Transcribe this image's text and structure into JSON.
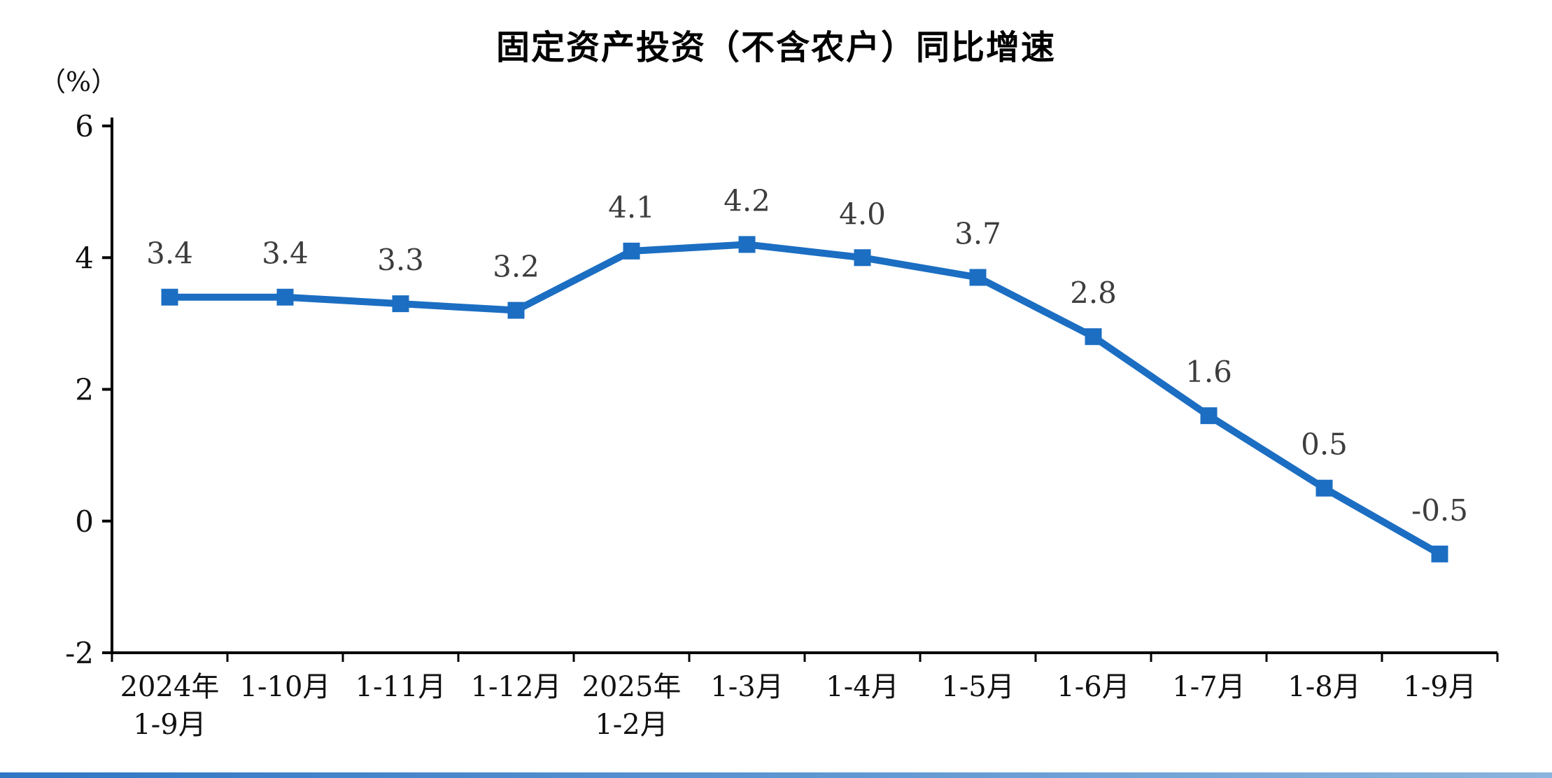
{
  "chart_data": {
    "type": "line",
    "title": "固定资产投资（不含农户）同比增速",
    "ylabel": "（%）",
    "xlabel": "",
    "categories": [
      [
        "2024年",
        "1-9月"
      ],
      [
        "1-10月"
      ],
      [
        "1-11月"
      ],
      [
        "1-12月"
      ],
      [
        "2025年",
        "1-2月"
      ],
      [
        "1-3月"
      ],
      [
        "1-4月"
      ],
      [
        "1-5月"
      ],
      [
        "1-6月"
      ],
      [
        "1-7月"
      ],
      [
        "1-8月"
      ],
      [
        "1-9月"
      ]
    ],
    "values": [
      3.4,
      3.4,
      3.3,
      3.2,
      4.1,
      4.2,
      4.0,
      3.7,
      2.8,
      1.6,
      0.5,
      -0.5
    ],
    "value_labels": [
      "3.4",
      "3.4",
      "3.3",
      "3.2",
      "4.1",
      "4.2",
      "4.0",
      "3.7",
      "2.8",
      "1.6",
      "0.5",
      "-0.5"
    ],
    "ylim": [
      -2,
      6
    ],
    "yticks": [
      6,
      4,
      2,
      0,
      -2
    ],
    "grid": false,
    "legend": null,
    "marker": "square",
    "line_color": "#1b6ec2",
    "marker_color": "#1b6ec2",
    "label_color": "#3d3d3d",
    "axis_color": "#000000",
    "tick_label_color": "#111111",
    "bottom_bar_colors": [
      "#2f76c5",
      "#8ab4dd"
    ]
  }
}
